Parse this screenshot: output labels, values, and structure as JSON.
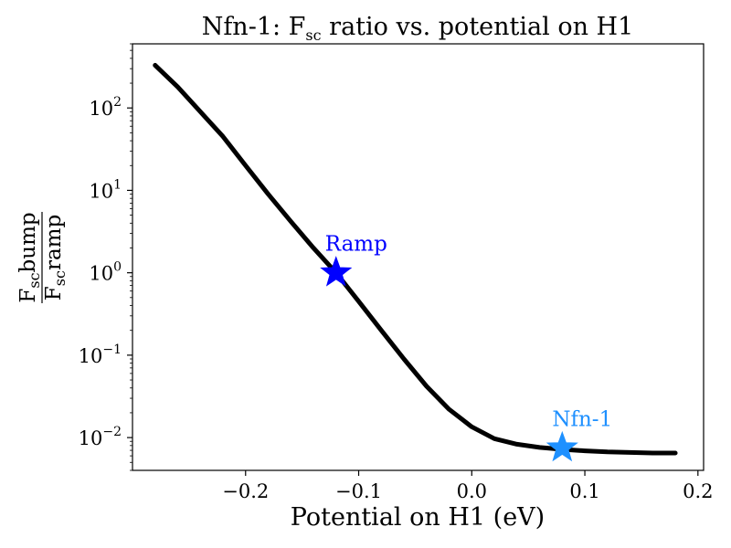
{
  "chart_data": {
    "type": "line",
    "title_main": "Nfn-1: F",
    "title_sub": "sc",
    "title_rest": " ratio vs. potential on H1",
    "xlabel": "Potential on H1 (eV)",
    "ylabel": {
      "numerator": {
        "base": "F",
        "sub": "sc",
        "rest": "bump"
      },
      "denominator": {
        "base": "F",
        "sub": "sc",
        "rest": "ramp"
      }
    },
    "xscale": "linear",
    "yscale": "log",
    "xlim": [
      -0.3,
      0.205
    ],
    "ylim": [
      0.004,
      600
    ],
    "xticks": [
      {
        "value": -0.2,
        "label": "−0.2"
      },
      {
        "value": -0.1,
        "label": "−0.1"
      },
      {
        "value": 0.0,
        "label": "0.0"
      },
      {
        "value": 0.1,
        "label": "0.1"
      },
      {
        "value": 0.2,
        "label": "0.2"
      }
    ],
    "yticks": [
      {
        "value": 100,
        "base": "10",
        "exp": "2"
      },
      {
        "value": 10,
        "base": "10",
        "exp": "1"
      },
      {
        "value": 1,
        "base": "10",
        "exp": "0"
      },
      {
        "value": 0.1,
        "base": "10",
        "exp": "−1"
      },
      {
        "value": 0.01,
        "base": "10",
        "exp": "−2"
      }
    ],
    "grid": false,
    "series": [
      {
        "color": "#000000",
        "x": [
          -0.28,
          -0.26,
          -0.24,
          -0.22,
          -0.2,
          -0.18,
          -0.16,
          -0.14,
          -0.12,
          -0.1,
          -0.08,
          -0.06,
          -0.04,
          -0.02,
          0.0,
          0.02,
          0.04,
          0.06,
          0.08,
          0.1,
          0.12,
          0.14,
          0.16,
          0.18
        ],
        "y": [
          330,
          180,
          90,
          45,
          20,
          9,
          4.2,
          2.0,
          1.0,
          0.45,
          0.2,
          0.09,
          0.042,
          0.022,
          0.0135,
          0.0097,
          0.0083,
          0.0076,
          0.0072,
          0.0069,
          0.0067,
          0.0066,
          0.0065,
          0.0065
        ]
      }
    ],
    "markers": [
      {
        "label": "Ramp",
        "x": -0.12,
        "y": 1.0,
        "color": "#0000ff"
      },
      {
        "label": "Nfn-1",
        "x": 0.08,
        "y": 0.0075,
        "color": "#1e90ff"
      }
    ]
  }
}
